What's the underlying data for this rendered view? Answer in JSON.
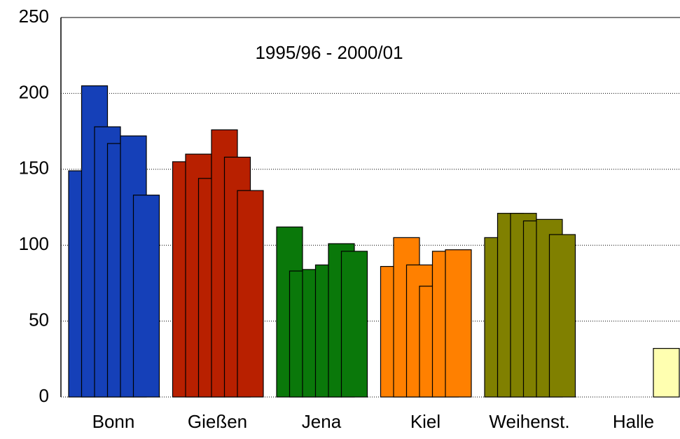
{
  "chart_data": {
    "type": "bar",
    "subtitle": "1995/96 - 2000/01",
    "categories": [
      "Bonn",
      "Gießen",
      "Jena",
      "Kiel",
      "Weihenst.",
      "Halle"
    ],
    "colors": [
      "#1540b8",
      "#b82000",
      "#0a780a",
      "#ff8000",
      "#808000",
      "#ffffb0"
    ],
    "series": [
      {
        "values": [
          149,
          155,
          112,
          86,
          105,
          null
        ]
      },
      {
        "values": [
          205,
          160,
          83,
          105,
          121,
          null
        ]
      },
      {
        "values": [
          178,
          144,
          84,
          87,
          121,
          null
        ]
      },
      {
        "values": [
          167,
          176,
          87,
          73,
          116,
          null
        ]
      },
      {
        "values": [
          172,
          158,
          101,
          96,
          117,
          null
        ]
      },
      {
        "values": [
          133,
          136,
          96,
          97,
          107,
          32
        ]
      }
    ],
    "ylim": [
      0,
      250
    ],
    "yticks": [
      0,
      50,
      100,
      150,
      200,
      250
    ],
    "grid": true
  }
}
